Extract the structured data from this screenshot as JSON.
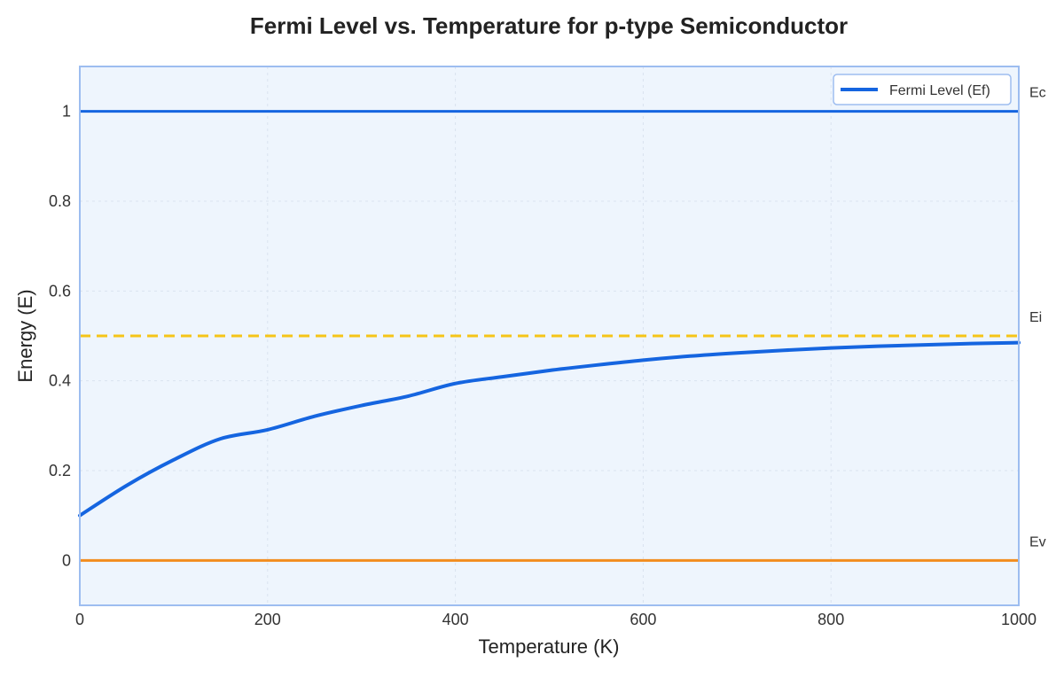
{
  "chart_data": {
    "type": "line",
    "title": "Fermi Level vs. Temperature for p-type Semiconductor",
    "xlabel": "Temperature (K)",
    "ylabel": "Energy (E)",
    "xlim": [
      0,
      1000
    ],
    "ylim": [
      -0.1,
      1.1
    ],
    "xticks": [
      0,
      200,
      400,
      600,
      800,
      1000
    ],
    "xtick_labels": [
      "0",
      "200",
      "400",
      "600",
      "800",
      "1000"
    ],
    "yticks": [
      0,
      0.2,
      0.4,
      0.6,
      0.8,
      1
    ],
    "ytick_labels": [
      "0",
      "0.2",
      "0.4",
      "0.6",
      "0.8",
      "1"
    ],
    "grid": true,
    "legend_position": "top-right",
    "series": [
      {
        "name": "Fermi Level (Ef)",
        "color": "#1565e0",
        "x": [
          0,
          50,
          100,
          150,
          200,
          250,
          300,
          350,
          400,
          450,
          500,
          550,
          600,
          650,
          700,
          750,
          800,
          850,
          900,
          950,
          1000
        ],
        "y": [
          0.1,
          0.167,
          0.224,
          0.271,
          0.291,
          0.321,
          0.345,
          0.366,
          0.394,
          0.409,
          0.423,
          0.435,
          0.446,
          0.455,
          0.462,
          0.468,
          0.473,
          0.477,
          0.48,
          0.483,
          0.485
        ]
      }
    ],
    "reference_lines": [
      {
        "label": "Ec",
        "y": 1.0,
        "color": "#1565e0",
        "style": "solid"
      },
      {
        "label": "Ei",
        "y": 0.5,
        "color": "#f5c518",
        "style": "dashed"
      },
      {
        "label": "Ev",
        "y": 0.0,
        "color": "#f28c1e",
        "style": "solid"
      }
    ],
    "colors": {
      "plot_background": "#eef5fd",
      "plot_border": "#9dbdf0",
      "grid": "#d9e3ef"
    }
  }
}
